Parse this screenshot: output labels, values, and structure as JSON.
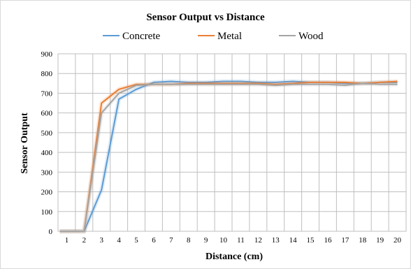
{
  "chart_data": {
    "type": "line",
    "title": "Sensor Output vs Distance",
    "xlabel": "Distance (cm)",
    "ylabel": "Sensor Output",
    "categories": [
      1,
      2,
      3,
      4,
      5,
      6,
      7,
      8,
      9,
      10,
      11,
      12,
      13,
      14,
      15,
      16,
      17,
      18,
      19,
      20
    ],
    "ylim": [
      0,
      900
    ],
    "yticks": [
      0,
      100,
      200,
      300,
      400,
      500,
      600,
      700,
      800,
      900
    ],
    "grid": true,
    "legend_position": "top",
    "x_values": [
      0.6,
      1,
      2,
      3,
      4,
      5,
      6,
      7,
      8,
      9,
      10,
      11,
      12,
      13,
      14,
      15,
      16,
      17,
      18,
      19,
      20
    ],
    "series": [
      {
        "name": "Concrete",
        "color": "#5b9bd5",
        "values": [
          0,
          0,
          0,
          210,
          670,
          720,
          755,
          760,
          755,
          755,
          760,
          760,
          755,
          755,
          760,
          755,
          755,
          750,
          750,
          755,
          755
        ]
      },
      {
        "name": "Metal",
        "color": "#ed7d31",
        "values": [
          0,
          0,
          0,
          650,
          720,
          745,
          745,
          745,
          750,
          750,
          750,
          750,
          750,
          745,
          750,
          755,
          755,
          755,
          750,
          755,
          760
        ]
      },
      {
        "name": "Wood",
        "color": "#a5a5a5",
        "values": [
          0,
          0,
          0,
          600,
          700,
          740,
          745,
          745,
          745,
          745,
          745,
          745,
          745,
          740,
          745,
          745,
          745,
          740,
          750,
          745,
          745
        ]
      }
    ]
  }
}
